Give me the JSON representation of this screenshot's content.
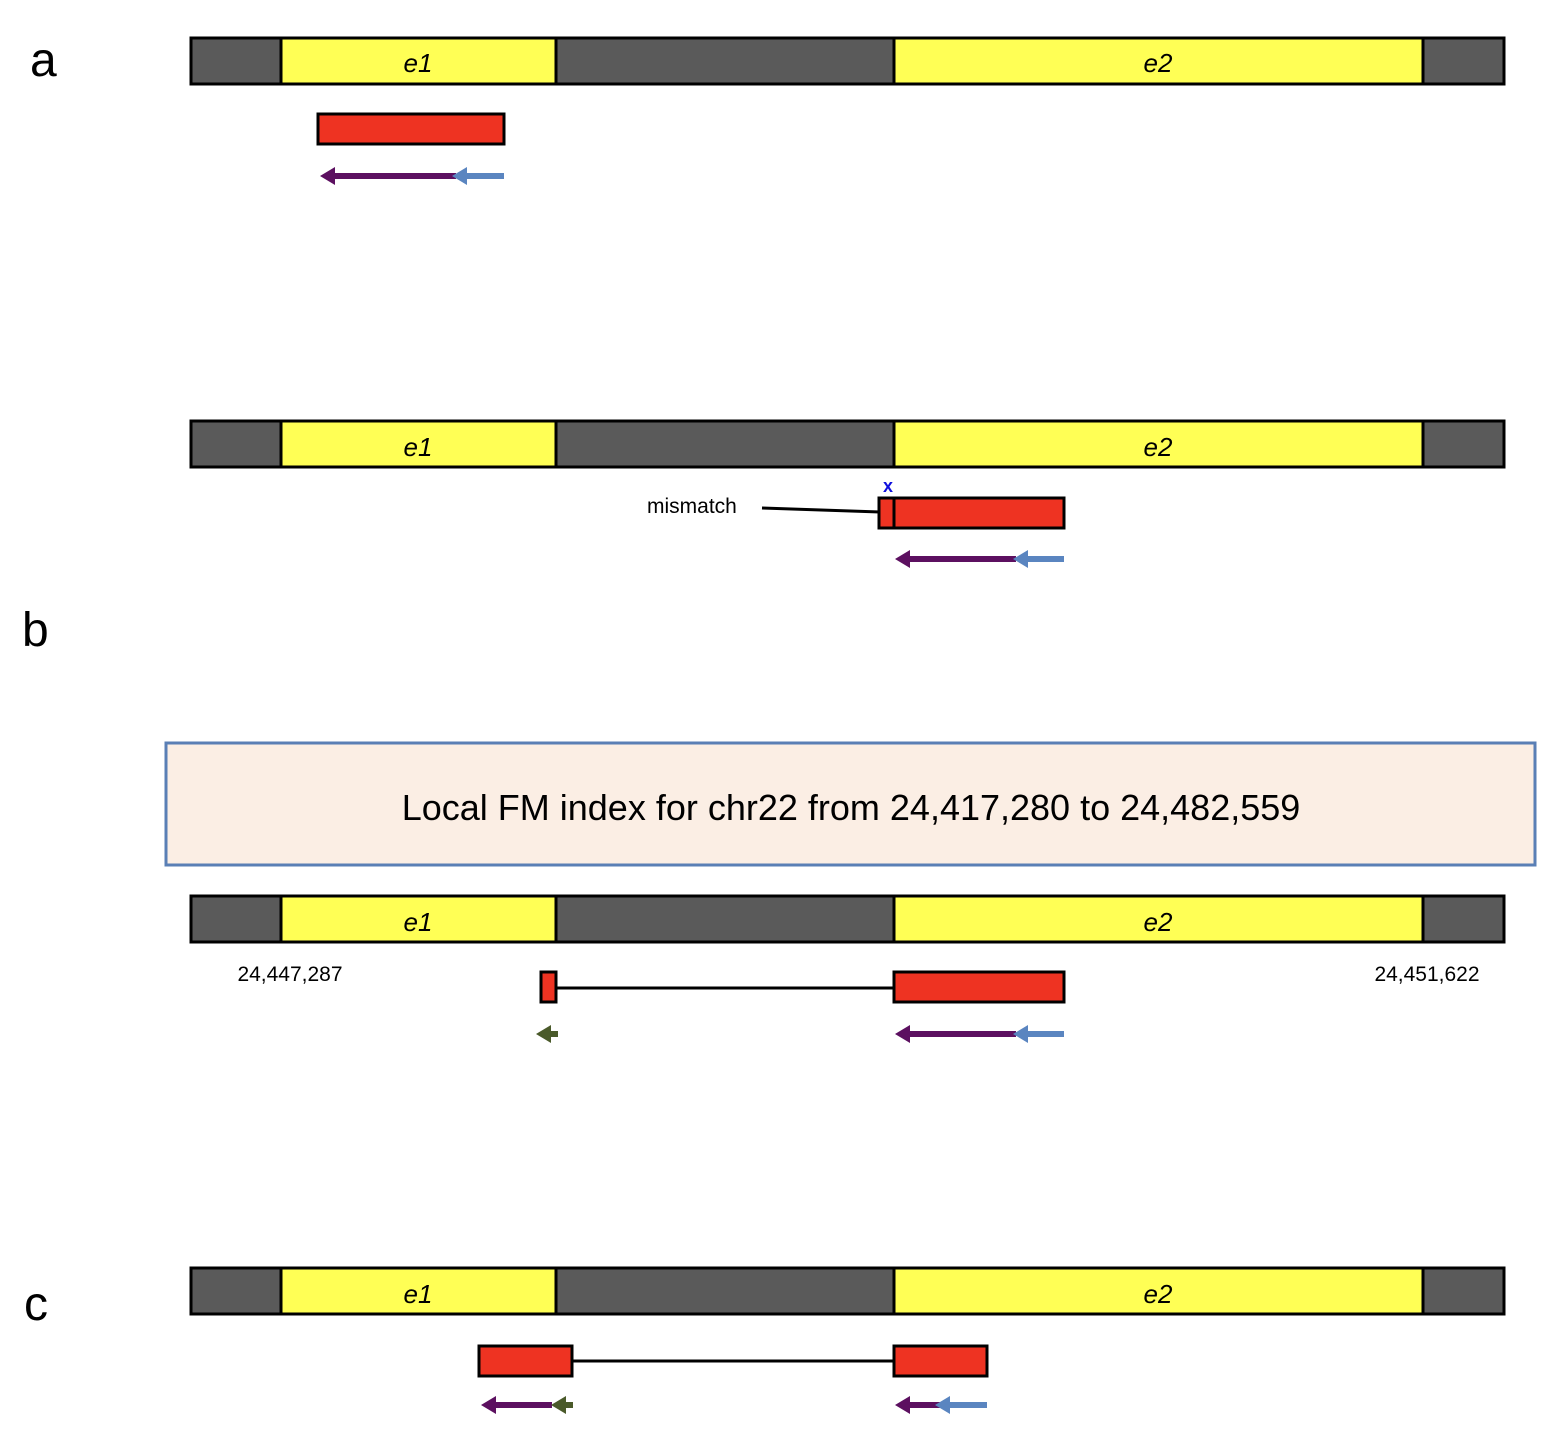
{
  "panels": {
    "a": "a",
    "b": "b",
    "c": "c"
  },
  "exons": {
    "e1": "e1",
    "e2": "e2"
  },
  "panel_a": {
    "mismatch_label": "mismatch",
    "mismatch_mark": "x"
  },
  "panel_b": {
    "index_box_text": "Local FM index for chr22 from 24,417,280 to 24,482,559",
    "coord_left": "24,447,287",
    "coord_right": "24,451,622"
  },
  "colors": {
    "intron": "#5a5a5a",
    "exon": "#ffff55",
    "read": "#ee3322",
    "arrow_purple": "#5c1060",
    "arrow_blue": "#5a85c0",
    "arrow_green": "#4a5a2a",
    "mismatch_mark": "#1010dd",
    "index_box_fill": "#fbeee4",
    "index_box_stroke": "#5a7fb5"
  }
}
